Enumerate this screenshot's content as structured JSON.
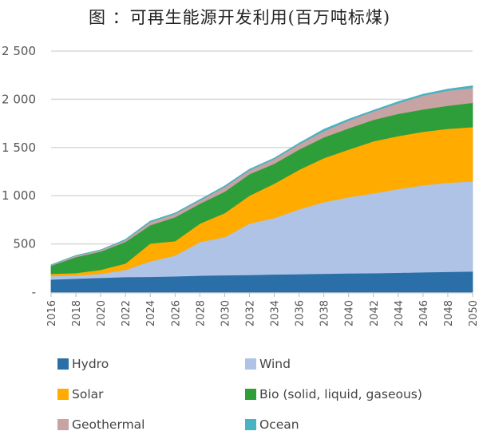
{
  "chart_data": {
    "type": "area",
    "stacked": true,
    "title": "图 ：可再生能源开发利用(百万吨标煤)",
    "xlabel": "",
    "ylabel": "",
    "ylim": [
      0,
      2500
    ],
    "yticks": [
      0,
      500,
      1000,
      1500,
      2000,
      2500
    ],
    "ytick_labels": [
      "-",
      "500",
      "1 000",
      "1 500",
      "2 000",
      "2 500"
    ],
    "grid": true,
    "legend_position": "bottom",
    "x": [
      2016,
      2018,
      2020,
      2022,
      2024,
      2026,
      2028,
      2030,
      2032,
      2034,
      2036,
      2038,
      2040,
      2042,
      2044,
      2046,
      2048,
      2050
    ],
    "xtick_labels": [
      "2016",
      "2018",
      "2020",
      "2022",
      "2024",
      "2026",
      "2028",
      "2030",
      "2032",
      "2034",
      "2036",
      "2038",
      "2040",
      "2042",
      "2044",
      "2046",
      "2048",
      "2050"
    ],
    "series": [
      {
        "name": "Hydro",
        "color": "#2a6fa8",
        "values": [
          132,
          141,
          149,
          157,
          160,
          165,
          172,
          176,
          180,
          185,
          188,
          192,
          195,
          198,
          202,
          207,
          211,
          215
        ]
      },
      {
        "name": "Wind",
        "color": "#aec3e6",
        "values": [
          34,
          33,
          41,
          75,
          160,
          216,
          349,
          395,
          532,
          585,
          672,
          743,
          790,
          828,
          868,
          902,
          924,
          935
        ]
      },
      {
        "name": "Solar",
        "color": "#ffab00",
        "values": [
          24,
          25,
          42,
          66,
          185,
          149,
          191,
          249,
          290,
          356,
          410,
          456,
          495,
          539,
          550,
          555,
          560,
          563
        ]
      },
      {
        "name": "Bio (solid, liquid, gaseous)",
        "color": "#2e9e3a",
        "values": [
          85,
          165,
          190,
          224,
          190,
          248,
          207,
          223,
          223,
          207,
          210,
          215,
          220,
          223,
          230,
          232,
          240,
          252
        ]
      },
      {
        "name": "Geothermal",
        "color": "#c7a3a3",
        "values": [
          6,
          14,
          14,
          18,
          33,
          34,
          33,
          47,
          40,
          47,
          55,
          64,
          80,
          87,
          110,
          144,
          155,
          154
        ]
      },
      {
        "name": "Ocean",
        "color": "#49b3c2",
        "values": [
          3,
          3,
          3,
          6,
          9,
          8,
          8,
          11,
          10,
          10,
          10,
          19,
          15,
          12,
          15,
          13,
          15,
          21
        ]
      }
    ]
  },
  "legend": {
    "items": [
      {
        "label": "Hydro",
        "color": "#2a6fa8"
      },
      {
        "label": "Wind",
        "color": "#aec3e6"
      },
      {
        "label": "Solar",
        "color": "#ffab00"
      },
      {
        "label": "Bio (solid, liquid, gaseous)",
        "color": "#2e9e3a"
      },
      {
        "label": "Geothermal",
        "color": "#c7a3a3"
      },
      {
        "label": "Ocean",
        "color": "#49b3c2"
      }
    ]
  }
}
